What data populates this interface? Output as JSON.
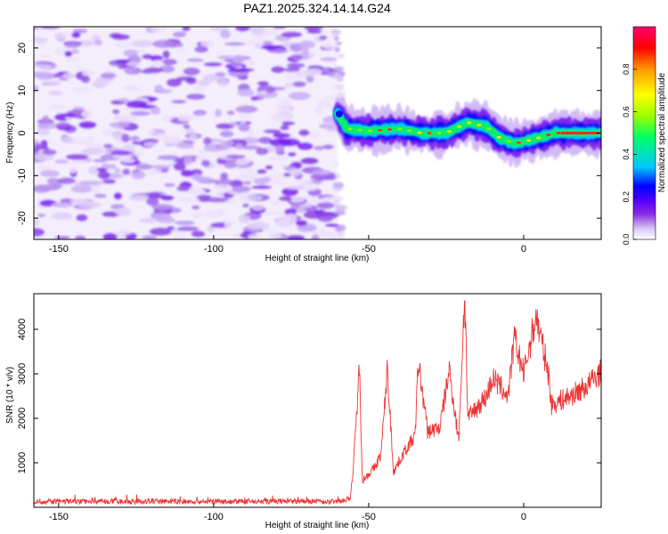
{
  "title": "PAZ1.2025.324.14.14.G24",
  "chart_data": [
    {
      "type": "heatmap",
      "xlabel": "Height of straight line (km)",
      "ylabel": "Frequency (Hz)",
      "xlim": [
        -158,
        25
      ],
      "ylim": [
        -25,
        25
      ],
      "xticks": [
        -150,
        -100,
        -50,
        0
      ],
      "yticks": [
        -20,
        -10,
        0,
        10,
        20
      ],
      "noise_region_x": [
        -158,
        -60
      ],
      "signal_region_x": [
        -60,
        25
      ],
      "signal_trace_points": [
        {
          "x": -60,
          "y": 4.5
        },
        {
          "x": -57,
          "y": 1.0
        },
        {
          "x": -50,
          "y": 0.5
        },
        {
          "x": -40,
          "y": 1.0
        },
        {
          "x": -33,
          "y": 0.0
        },
        {
          "x": -25,
          "y": 0.0
        },
        {
          "x": -18,
          "y": 2.5
        },
        {
          "x": -12,
          "y": 1.5
        },
        {
          "x": -8,
          "y": -1.0
        },
        {
          "x": -3,
          "y": -2.5
        },
        {
          "x": 3,
          "y": -1.5
        },
        {
          "x": 10,
          "y": 0.0
        },
        {
          "x": 25,
          "y": 0.0
        }
      ],
      "colorbar": {
        "label": "Normalized spectral amplitude",
        "range": [
          0.0,
          1.0
        ],
        "ticks": [
          "0.0",
          "0.2",
          "0.4",
          "0.6",
          "0.8"
        ],
        "colors": [
          "#ffffff",
          "#d9c8f8",
          "#8a2be2",
          "#5500ff",
          "#0000ff",
          "#00c8ff",
          "#00ff66",
          "#9bff00",
          "#ffff00",
          "#ff9900",
          "#ff0000",
          "#ff0070"
        ]
      }
    },
    {
      "type": "line",
      "xlabel": "Height of straight line (km)",
      "ylabel": "SNR (10 * v/v)",
      "xlim": [
        -158,
        25
      ],
      "ylim": [
        0,
        4800
      ],
      "xticks": [
        -150,
        -100,
        -50,
        0
      ],
      "yticks": [
        1000,
        2000,
        3000,
        4000
      ],
      "line_color": "#ee3333",
      "series": [
        {
          "name": "SNR",
          "points": [
            {
              "x": -158,
              "y": 130
            },
            {
              "x": -100,
              "y": 130
            },
            {
              "x": -60,
              "y": 130
            },
            {
              "x": -56,
              "y": 200
            },
            {
              "x": -55,
              "y": 800
            },
            {
              "x": -53,
              "y": 3150
            },
            {
              "x": -52,
              "y": 600
            },
            {
              "x": -48,
              "y": 900
            },
            {
              "x": -46,
              "y": 1200
            },
            {
              "x": -44,
              "y": 3100
            },
            {
              "x": -42,
              "y": 800
            },
            {
              "x": -38,
              "y": 1300
            },
            {
              "x": -35,
              "y": 1600
            },
            {
              "x": -34,
              "y": 3300
            },
            {
              "x": -31,
              "y": 1700
            },
            {
              "x": -27,
              "y": 1800
            },
            {
              "x": -24,
              "y": 3100
            },
            {
              "x": -21,
              "y": 1500
            },
            {
              "x": -19,
              "y": 4800
            },
            {
              "x": -18,
              "y": 2000
            },
            {
              "x": -12,
              "y": 2500
            },
            {
              "x": -10,
              "y": 2900
            },
            {
              "x": -5,
              "y": 2500
            },
            {
              "x": -3,
              "y": 3800
            },
            {
              "x": 0,
              "y": 3000
            },
            {
              "x": 4,
              "y": 4300
            },
            {
              "x": 8,
              "y": 3000
            },
            {
              "x": 9,
              "y": 2300
            },
            {
              "x": 15,
              "y": 2500
            },
            {
              "x": 20,
              "y": 2700
            },
            {
              "x": 25,
              "y": 3050
            }
          ]
        }
      ]
    }
  ]
}
